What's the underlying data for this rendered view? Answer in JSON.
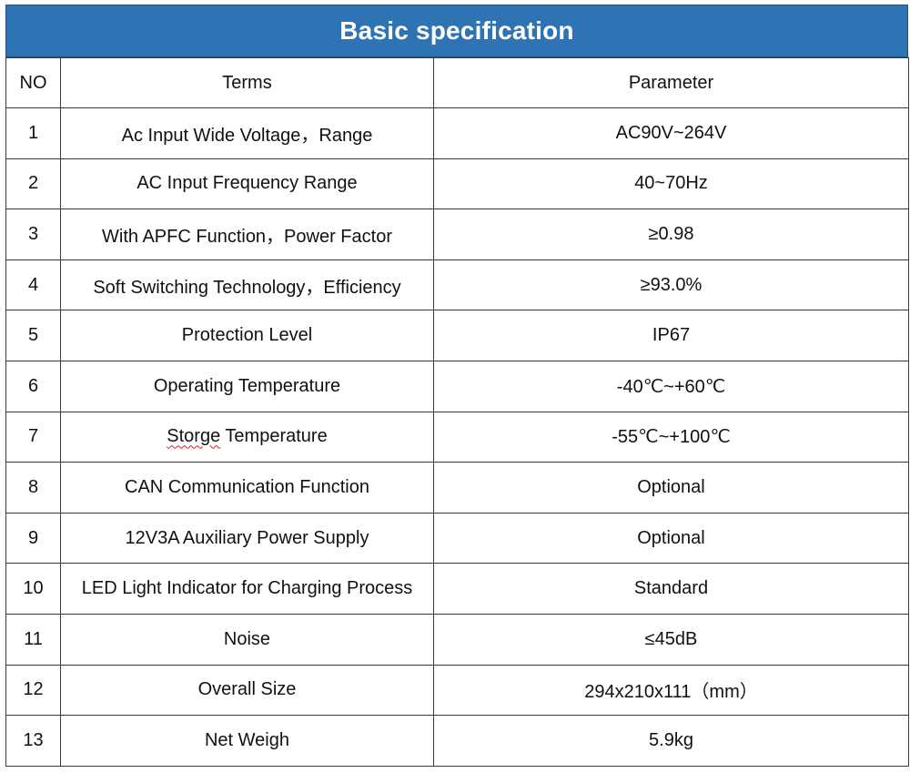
{
  "title": "Basic specification",
  "columns": {
    "no": "NO",
    "terms": "Terms",
    "parameter": "Parameter"
  },
  "rows": [
    {
      "no": "1",
      "term": "Ac Input Wide Voltage，Range",
      "param": "AC90V~264V"
    },
    {
      "no": "2",
      "term": "AC Input Frequency Range",
      "param": "40~70Hz"
    },
    {
      "no": "3",
      "term": "With APFC Function，Power Factor",
      "param": "≥0.98"
    },
    {
      "no": "4",
      "term": "Soft Switching Technology，Efficiency",
      "param": "≥93.0%"
    },
    {
      "no": "5",
      "term": "Protection Level",
      "param": "IP67"
    },
    {
      "no": "6",
      "term": "Operating Temperature",
      "param": "-40℃~+60℃"
    },
    {
      "no": "7",
      "term_misspelled": "Storge",
      "term_rest": " Temperature",
      "param": "-55℃~+100℃"
    },
    {
      "no": "8",
      "term": "CAN Communication Function",
      "param": "Optional"
    },
    {
      "no": "9",
      "term": "12V3A Auxiliary Power Supply",
      "param": "Optional"
    },
    {
      "no": "10",
      "term": "LED Light Indicator for Charging Process",
      "param": "Standard"
    },
    {
      "no": "11",
      "term": "Noise",
      "param": "≤45dB"
    },
    {
      "no": "12",
      "term": "Overall Size",
      "param": "294x210x111（mm）"
    },
    {
      "no": "13",
      "term": "Net Weigh",
      "param": "5.9kg"
    }
  ],
  "colors": {
    "header_bg": "#2e74b5",
    "header_text": "#ffffff",
    "border": "#3a3a3a",
    "spellcheck": "#d02020"
  }
}
